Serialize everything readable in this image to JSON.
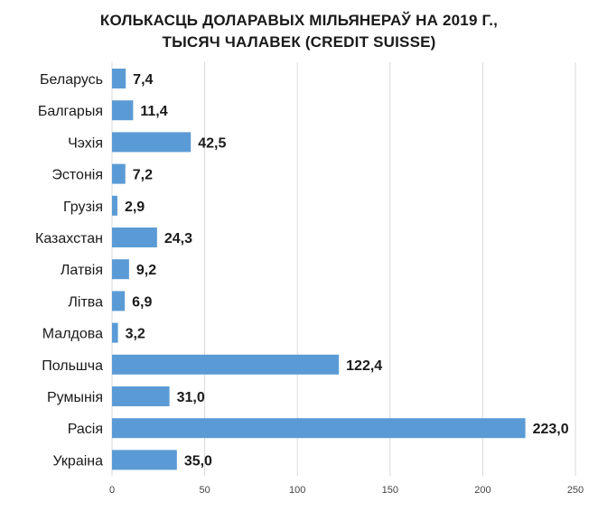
{
  "chart_data": {
    "type": "bar",
    "orientation": "horizontal",
    "title": [
      "КОЛЬКАСЦЬ ДОЛАРАВЫХ МІЛЬЯНЕРАЎ НА 2019 Г.,",
      "ТЫСЯЧ ЧАЛАВЕК (CREDIT SUISSE)"
    ],
    "categories": [
      "Беларусь",
      "Балгарыя",
      "Чэхія",
      "Эстонія",
      "Грузія",
      "Казахстан",
      "Латвія",
      "Літва",
      "Малдова",
      "Польшча",
      "Румынія",
      "Расія",
      "Украіна"
    ],
    "values": [
      7.4,
      11.4,
      42.5,
      7.2,
      2.9,
      24.3,
      9.2,
      6.9,
      3.2,
      122.4,
      31.0,
      223.0,
      35.0
    ],
    "data_labels": [
      "7,4",
      "11,4",
      "42,5",
      "7,2",
      "2,9",
      "24,3",
      "9,2",
      "6,9",
      "3,2",
      "122,4",
      "31,0",
      "223,0",
      "35,0"
    ],
    "xlim": [
      0,
      250
    ],
    "x_ticks": [
      0,
      50,
      100,
      150,
      200,
      250
    ],
    "x_tick_labels": [
      "0",
      "50",
      "100",
      "150",
      "200",
      "250"
    ],
    "xlabel": "",
    "ylabel": "",
    "grid": "vertical",
    "legend": "none",
    "colors": {
      "bar": "#5b9bd5",
      "grid": "#d9d9d9",
      "text": "#1a1a1a"
    }
  }
}
